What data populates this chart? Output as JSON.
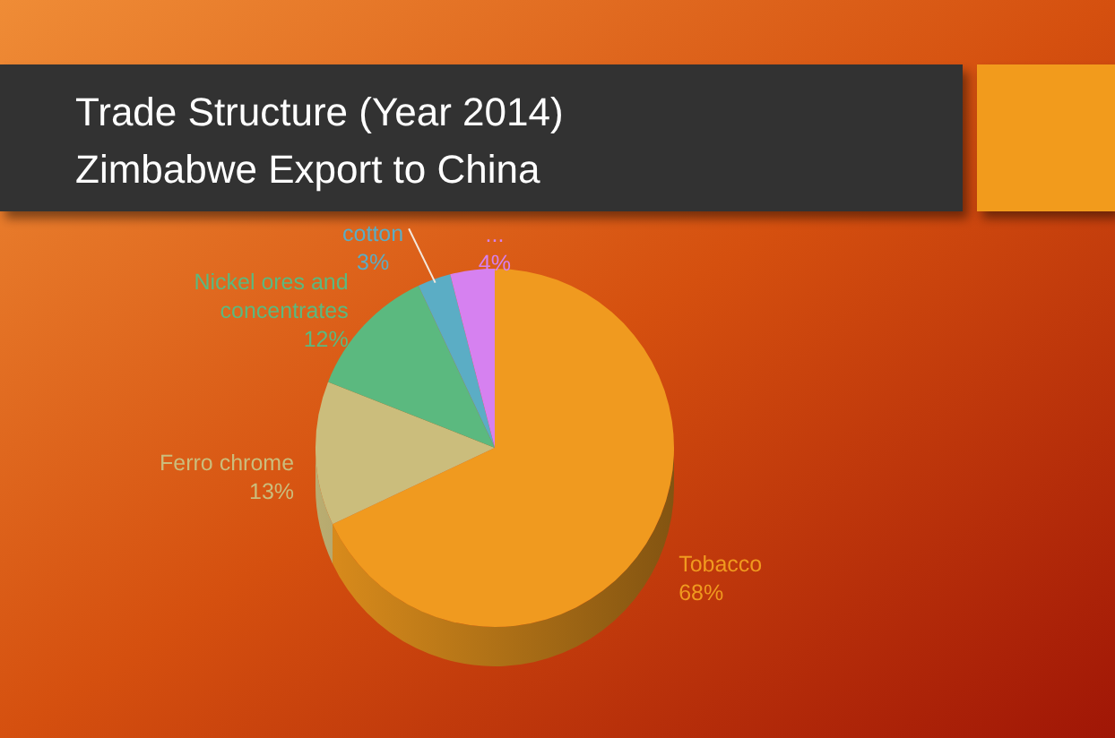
{
  "chart_data": {
    "type": "pie",
    "title": "Trade Structure (Year 2014)",
    "subtitle": "Zimbabwe Export to China",
    "categories": [
      "Tobacco",
      "Ferro chrome",
      "Nickel ores and concentrates",
      "cotton",
      "..."
    ],
    "values": [
      68,
      13,
      12,
      3,
      4
    ],
    "colors": [
      "#f09a1f",
      "#cbbd7c",
      "#5bb97f",
      "#5badc5",
      "#d681f0"
    ],
    "value_labels": [
      "68%",
      "13%",
      "12%",
      "3%",
      "4%"
    ]
  }
}
